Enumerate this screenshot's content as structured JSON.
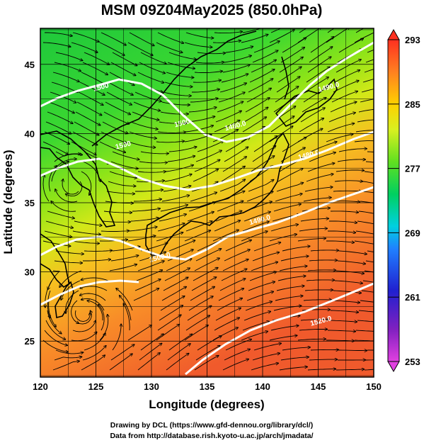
{
  "title": "MSM 09Z04May2025 (850.0hPa)",
  "x_axis": {
    "label": "Longitude (degrees)",
    "range": [
      120,
      150
    ],
    "ticks": [
      120,
      125,
      130,
      135,
      140,
      145,
      150
    ]
  },
  "y_axis": {
    "label": "Latitude (degrees)",
    "range": [
      22.4,
      47.6
    ],
    "ticks": [
      25,
      30,
      35,
      40,
      45
    ]
  },
  "colorbar": {
    "range": [
      253,
      293
    ],
    "ticks": [
      "293",
      "285",
      "277",
      "269",
      "261",
      "253"
    ],
    "colors": [
      "#e040e0",
      "#8020c0",
      "#2020d0",
      "#2080ff",
      "#00d0e0",
      "#00d060",
      "#60e020",
      "#d8f020",
      "#ffd000",
      "#ff8020",
      "#ff3020"
    ]
  },
  "contour_labels": [
    {
      "text": "1500",
      "lon": 125.5,
      "lat": 43.2
    },
    {
      "text": "1500",
      "lon": 127.5,
      "lat": 39.0
    },
    {
      "text": "1500",
      "lon": 132.8,
      "lat": 40.6
    },
    {
      "text": "1480.0",
      "lon": 137.6,
      "lat": 40.4
    },
    {
      "text": "1480.0",
      "lon": 144.2,
      "lat": 38.3
    },
    {
      "text": "1490.0",
      "lon": 139.8,
      "lat": 33.6
    },
    {
      "text": "1490.0",
      "lon": 146.0,
      "lat": 43.2
    },
    {
      "text": "1500.0",
      "lon": 130.8,
      "lat": 30.9
    },
    {
      "text": "1520.0",
      "lon": 145.3,
      "lat": 26.3
    }
  ],
  "credits": {
    "line1": "Drawing by DCL (https://www.gfd-dennou.org/library/dcl/)",
    "line2": "Data from http://database.rish.kyoto-u.ac.jp/arch/jmadata/"
  }
}
